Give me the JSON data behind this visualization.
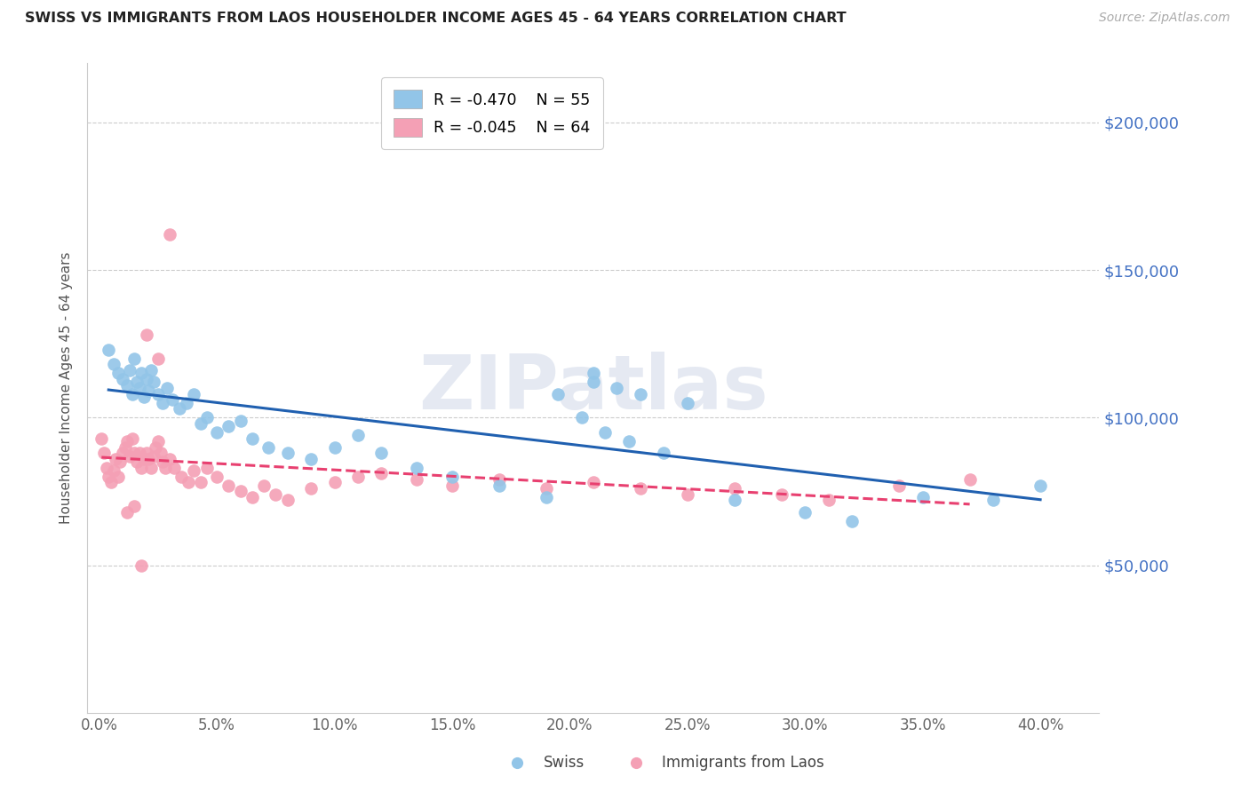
{
  "title": "SWISS VS IMMIGRANTS FROM LAOS HOUSEHOLDER INCOME AGES 45 - 64 YEARS CORRELATION CHART",
  "source": "Source: ZipAtlas.com",
  "ylabel": "Householder Income Ages 45 - 64 years",
  "xlabel_ticks": [
    "0.0%",
    "5.0%",
    "10.0%",
    "15.0%",
    "20.0%",
    "25.0%",
    "30.0%",
    "35.0%",
    "40.0%"
  ],
  "xlabel_vals": [
    0.0,
    0.05,
    0.1,
    0.15,
    0.2,
    0.25,
    0.3,
    0.35,
    0.4
  ],
  "ytick_labels": [
    "$50,000",
    "$100,000",
    "$150,000",
    "$200,000"
  ],
  "ytick_vals": [
    50000,
    100000,
    150000,
    200000
  ],
  "ylim": [
    0,
    220000
  ],
  "xlim": [
    -0.005,
    0.425
  ],
  "blue_color": "#92c5e8",
  "pink_color": "#f4a0b5",
  "blue_line_color": "#2060b0",
  "pink_line_color": "#e84070",
  "legend_blue_R": "R = -0.470",
  "legend_blue_N": "N = 55",
  "legend_pink_R": "R = -0.045",
  "legend_pink_N": "N = 64",
  "watermark": "ZIPatlas",
  "swiss_x": [
    0.004,
    0.006,
    0.008,
    0.01,
    0.012,
    0.013,
    0.014,
    0.015,
    0.016,
    0.017,
    0.018,
    0.019,
    0.02,
    0.021,
    0.022,
    0.023,
    0.025,
    0.027,
    0.029,
    0.031,
    0.034,
    0.037,
    0.04,
    0.043,
    0.046,
    0.05,
    0.055,
    0.06,
    0.065,
    0.072,
    0.08,
    0.09,
    0.1,
    0.11,
    0.12,
    0.135,
    0.15,
    0.17,
    0.19,
    0.21,
    0.23,
    0.25,
    0.27,
    0.3,
    0.32,
    0.35,
    0.38,
    0.4,
    0.21,
    0.22,
    0.195,
    0.205,
    0.215,
    0.225,
    0.24
  ],
  "swiss_y": [
    123000,
    118000,
    115000,
    113000,
    111000,
    116000,
    108000,
    120000,
    112000,
    110000,
    115000,
    107000,
    113000,
    109000,
    116000,
    112000,
    108000,
    105000,
    110000,
    106000,
    103000,
    105000,
    108000,
    98000,
    100000,
    95000,
    97000,
    99000,
    93000,
    90000,
    88000,
    86000,
    90000,
    94000,
    88000,
    83000,
    80000,
    77000,
    73000,
    112000,
    108000,
    105000,
    72000,
    68000,
    65000,
    73000,
    72000,
    77000,
    115000,
    110000,
    108000,
    100000,
    95000,
    92000,
    88000
  ],
  "laos_x": [
    0.001,
    0.002,
    0.003,
    0.004,
    0.005,
    0.006,
    0.007,
    0.008,
    0.009,
    0.01,
    0.011,
    0.012,
    0.013,
    0.014,
    0.015,
    0.016,
    0.017,
    0.018,
    0.019,
    0.02,
    0.021,
    0.022,
    0.023,
    0.024,
    0.025,
    0.026,
    0.027,
    0.028,
    0.03,
    0.032,
    0.035,
    0.038,
    0.04,
    0.043,
    0.046,
    0.05,
    0.055,
    0.06,
    0.065,
    0.07,
    0.075,
    0.08,
    0.09,
    0.1,
    0.11,
    0.12,
    0.135,
    0.15,
    0.17,
    0.19,
    0.21,
    0.23,
    0.25,
    0.27,
    0.29,
    0.31,
    0.34,
    0.37,
    0.03,
    0.025,
    0.02,
    0.018,
    0.015,
    0.012
  ],
  "laos_y": [
    93000,
    88000,
    83000,
    80000,
    78000,
    82000,
    86000,
    80000,
    85000,
    88000,
    90000,
    92000,
    87000,
    93000,
    88000,
    85000,
    88000,
    83000,
    86000,
    88000,
    86000,
    83000,
    87000,
    90000,
    92000,
    88000,
    85000,
    83000,
    86000,
    83000,
    80000,
    78000,
    82000,
    78000,
    83000,
    80000,
    77000,
    75000,
    73000,
    77000,
    74000,
    72000,
    76000,
    78000,
    80000,
    81000,
    79000,
    77000,
    79000,
    76000,
    78000,
    76000,
    74000,
    76000,
    74000,
    72000,
    77000,
    79000,
    162000,
    120000,
    128000,
    50000,
    70000,
    68000
  ]
}
